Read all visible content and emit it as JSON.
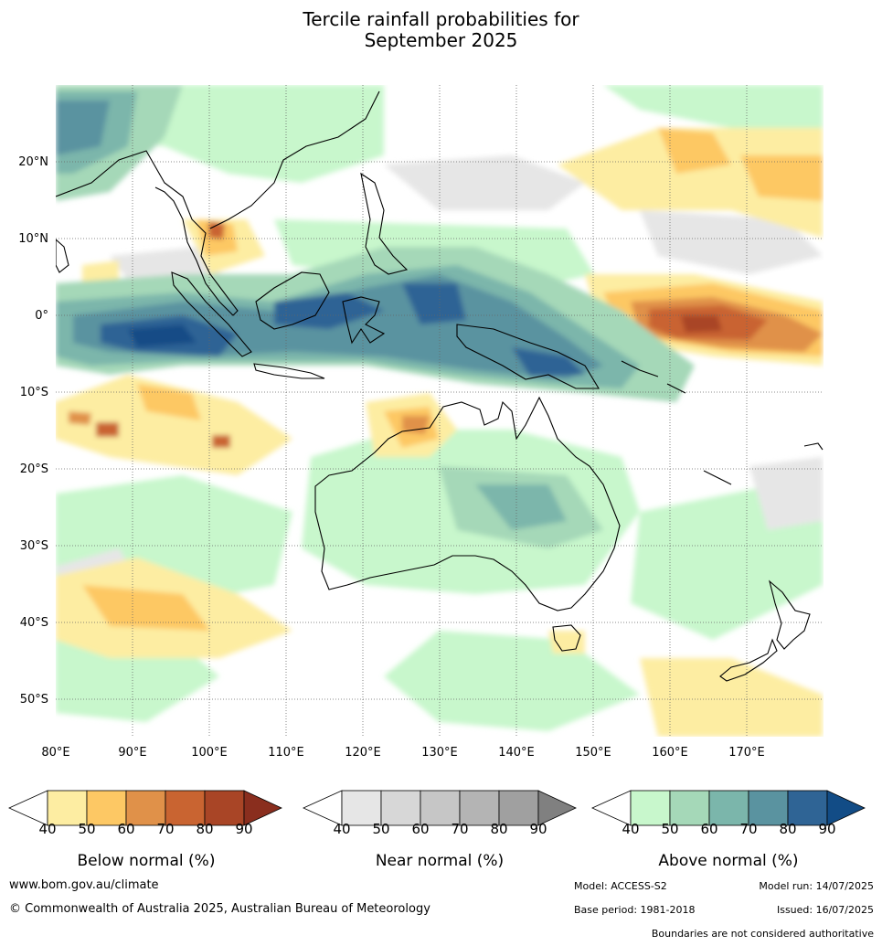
{
  "title": {
    "line1": "Tercile rainfall probabilities for",
    "line2": "September 2025"
  },
  "map": {
    "lat_ticks": [
      "20°N",
      "10°N",
      "0°",
      "10°S",
      "20°S",
      "30°S",
      "40°S",
      "50°S"
    ],
    "lon_ticks": [
      "80°E",
      "90°E",
      "100°E",
      "110°E",
      "120°E",
      "130°E",
      "140°E",
      "150°E",
      "160°E",
      "170°E"
    ],
    "extent": {
      "lon": [
        80,
        180
      ],
      "lat": [
        -55,
        30
      ]
    }
  },
  "legends": [
    {
      "title": "Below normal (%)",
      "ticks": [
        "40",
        "50",
        "60",
        "70",
        "80",
        "90"
      ],
      "colors": [
        "#ffffff",
        "#fdeda2",
        "#fdc864",
        "#e09149",
        "#c96431",
        "#a94526",
        "#8a2e1e"
      ]
    },
    {
      "title": "Near normal (%)",
      "ticks": [
        "40",
        "50",
        "60",
        "70",
        "80",
        "90"
      ],
      "colors": [
        "#ffffff",
        "#e6e6e6",
        "#d7d7d7",
        "#c6c6c6",
        "#b4b4b4",
        "#a0a0a0",
        "#808080"
      ]
    },
    {
      "title": "Above normal (%)",
      "ticks": [
        "40",
        "50",
        "60",
        "70",
        "80",
        "90"
      ],
      "colors": [
        "#ffffff",
        "#c8f7cc",
        "#a5d8b8",
        "#7bb6ab",
        "#5a93a0",
        "#2f6495",
        "#124c86"
      ]
    }
  ],
  "footer": {
    "website": "www.bom.gov.au/climate",
    "copyright": "© Commonwealth of Australia 2025, Australian Bureau of Meteorology",
    "model": "Model: ACCESS-S2",
    "model_run": "Model run: 14/07/2025",
    "base_period": "Base period: 1981-2018",
    "issued": "Issued: 16/07/2025",
    "disclaimer": "Boundaries are not considered authoritative"
  }
}
